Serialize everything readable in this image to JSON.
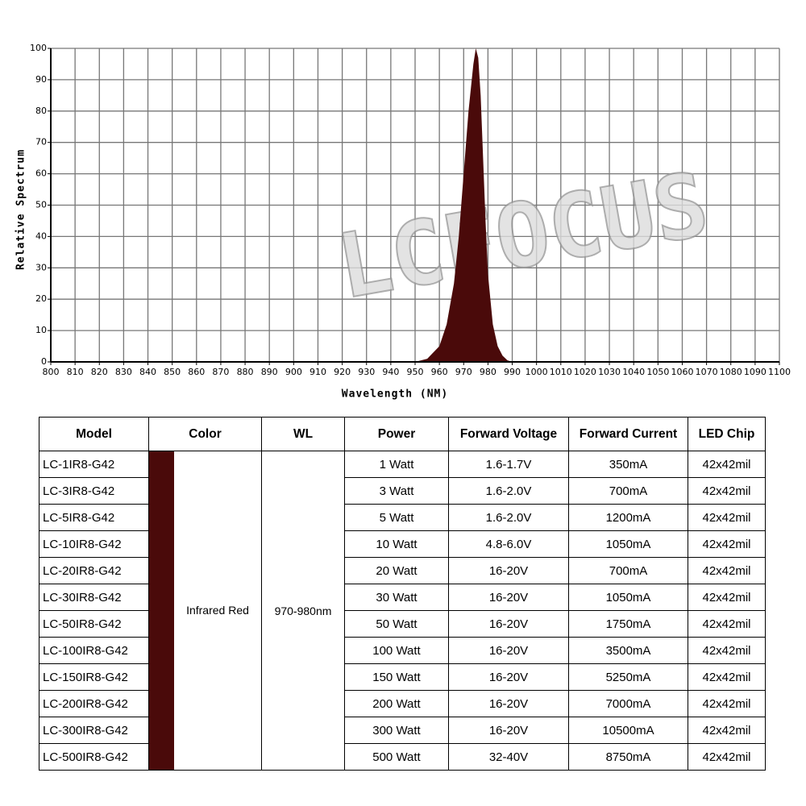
{
  "chart_data": {
    "type": "area",
    "x_label": "Wavelength (NM)",
    "y_label": "Relative Spectrum",
    "watermark": "LCFOCUS",
    "x": [
      950,
      955,
      960,
      963,
      966,
      968,
      970,
      972,
      974,
      975,
      976,
      977,
      978,
      979,
      980,
      982,
      984,
      986,
      988,
      990
    ],
    "values": [
      0,
      1,
      5,
      12,
      25,
      40,
      60,
      80,
      95,
      100,
      97,
      85,
      65,
      45,
      28,
      12,
      5,
      2,
      0.5,
      0
    ],
    "color": "#4a0a0a",
    "xlim": [
      800,
      1100
    ],
    "xticks": [
      800,
      810,
      820,
      830,
      840,
      850,
      860,
      870,
      880,
      890,
      900,
      910,
      920,
      930,
      940,
      950,
      960,
      970,
      980,
      990,
      1000,
      1010,
      1020,
      1030,
      1040,
      1050,
      1060,
      1070,
      1080,
      1090,
      1100
    ],
    "ylim": [
      0,
      100
    ],
    "yticks": [
      0,
      10,
      20,
      30,
      40,
      50,
      60,
      70,
      80,
      90,
      100
    ],
    "grid": true
  },
  "table": {
    "header": [
      "Model",
      "Color",
      "WL",
      "Power",
      "Forward Voltage",
      "Forward Current",
      "LED Chip"
    ],
    "color_name": "Infrared Red",
    "wavelength": "970-980nm",
    "swatch_color": "#4a0a0a",
    "rows": [
      [
        "LC-1IR8-G42",
        "1 Watt",
        "1.6-1.7V",
        "350mA",
        "42x42mil"
      ],
      [
        "LC-3IR8-G42",
        "3 Watt",
        "1.6-2.0V",
        "700mA",
        "42x42mil"
      ],
      [
        "LC-5IR8-G42",
        "5 Watt",
        "1.6-2.0V",
        "1200mA",
        "42x42mil"
      ],
      [
        "LC-10IR8-G42",
        "10 Watt",
        "4.8-6.0V",
        "1050mA",
        "42x42mil"
      ],
      [
        "LC-20IR8-G42",
        "20 Watt",
        "16-20V",
        "700mA",
        "42x42mil"
      ],
      [
        "LC-30IR8-G42",
        "30 Watt",
        "16-20V",
        "1050mA",
        "42x42mil"
      ],
      [
        "LC-50IR8-G42",
        "50 Watt",
        "16-20V",
        "1750mA",
        "42x42mil"
      ],
      [
        "LC-100IR8-G42",
        "100 Watt",
        "16-20V",
        "3500mA",
        "42x42mil"
      ],
      [
        "LC-150IR8-G42",
        "150 Watt",
        "16-20V",
        "5250mA",
        "42x42mil"
      ],
      [
        "LC-200IR8-G42",
        "200 Watt",
        "16-20V",
        "7000mA",
        "42x42mil"
      ],
      [
        "LC-300IR8-G42",
        "300 Watt",
        "16-20V",
        "10500mA",
        "42x42mil"
      ],
      [
        "LC-500IR8-G42",
        "500 Watt",
        "32-40V",
        "8750mA",
        "42x42mil"
      ]
    ]
  }
}
